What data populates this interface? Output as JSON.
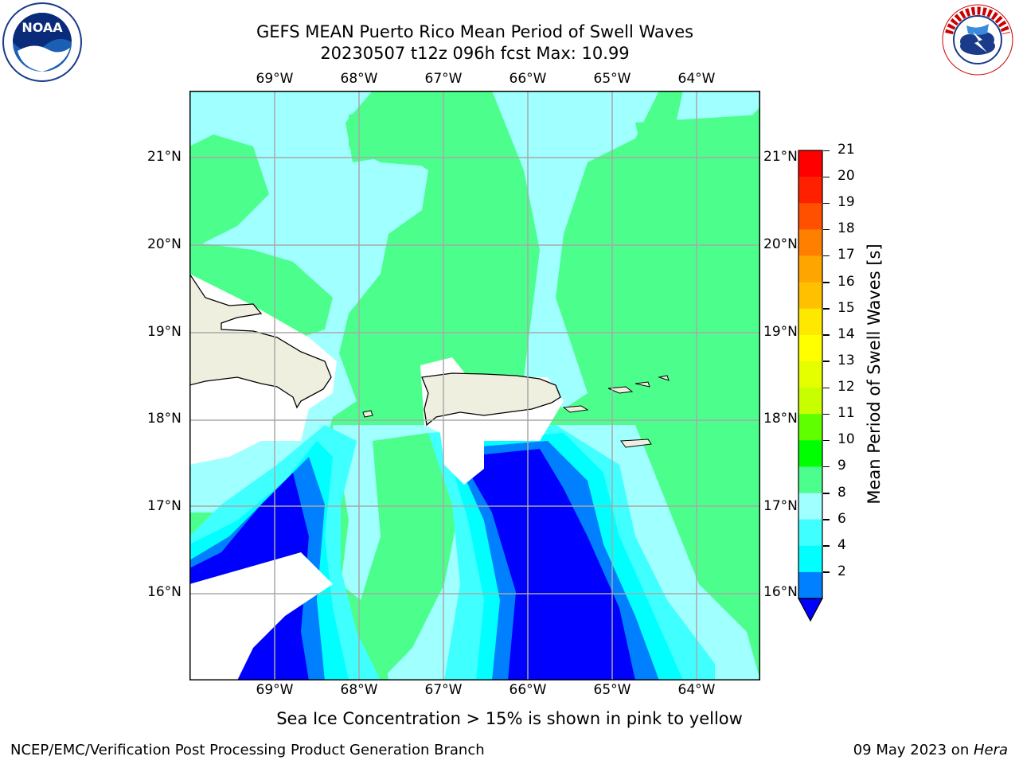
{
  "header": {
    "title_line1": "GEFS MEAN Puerto Rico Mean Period of Swell Waves",
    "title_line2": "20230507 t12z 096h fcst   Max: 10.99"
  },
  "logos": {
    "left": {
      "icon": "noaa-logo",
      "text": "NOAA",
      "ring_text": "NATIONAL OCEANIC AND ATMOSPHERIC ADMINISTRATION · U.S. DEPARTMENT OF COMMERCE"
    },
    "right": {
      "icon": "nws-logo",
      "ring_text": "NATIONAL WEATHER SERVICE"
    }
  },
  "map": {
    "lon_labels": [
      "69°W",
      "68°W",
      "67°W",
      "66°W",
      "65°W",
      "64°W"
    ],
    "lat_labels": [
      "21°N",
      "20°N",
      "19°N",
      "18°N",
      "17°N",
      "16°N"
    ],
    "extent": {
      "lon": [
        -70.0,
        -63.25
      ],
      "lat": [
        15.0,
        21.75
      ]
    },
    "colors": {
      "land": "#efefdf",
      "ocean_2": "#0000ff",
      "ocean_4": "#0080ff",
      "ocean_6": "#00ffff",
      "ocean_8": "#40ffff",
      "ocean_9": "#a0ffff",
      "ocean_10": "#4cff8c",
      "ocean_11": "#00ff00",
      "masked": "#ffffff"
    }
  },
  "colorbar": {
    "label": "Mean Period of Swell Waves [s]",
    "ticks": [
      "21",
      "20",
      "19",
      "18",
      "17",
      "16",
      "15",
      "14",
      "13",
      "12",
      "11",
      "10",
      "9",
      "8",
      "6",
      "4",
      "2"
    ],
    "colors": [
      "#ff0000",
      "#ff2000",
      "#ff5000",
      "#ff8000",
      "#ffa500",
      "#ffc000",
      "#ffe800",
      "#ffff00",
      "#e6ff00",
      "#c8ff00",
      "#60ff00",
      "#00ff00",
      "#4cff8c",
      "#a0ffff",
      "#40ffff",
      "#00ffff",
      "#0080ff"
    ],
    "under_color": "#0000ff"
  },
  "notes": {
    "ice": "Sea Ice Concentration > 15% is shown in pink to yellow"
  },
  "footer": {
    "left": "NCEP/EMC/Verification Post Processing Product Generation Branch",
    "date": "09 May 2023 on ",
    "host": "Hera"
  }
}
